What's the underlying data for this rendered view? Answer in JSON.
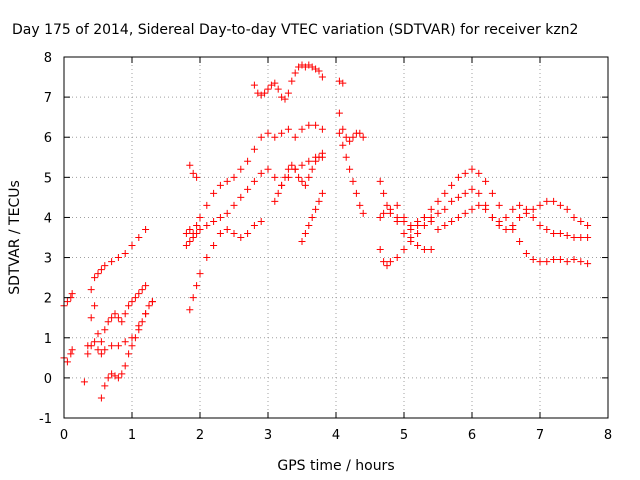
{
  "chart_data": {
    "type": "scatter",
    "title": "Day 175 of 2014, Sidereal Day-to-day VTEC variation (SDTVAR) for receiver kzn2",
    "xlabel": "GPS time / hours",
    "ylabel": "SDTVAR / TECUs",
    "xlim": [
      0,
      8
    ],
    "ylim": [
      -1,
      8
    ],
    "x_ticks": [
      0,
      1,
      2,
      3,
      4,
      5,
      6,
      7,
      8
    ],
    "y_ticks": [
      -1,
      0,
      1,
      2,
      3,
      4,
      5,
      6,
      7,
      8
    ],
    "grid": true,
    "marker": "+",
    "color": "#ff0000",
    "series": [
      {
        "x": [
          0.0,
          0.05,
          0.1,
          0.12
        ],
        "y": [
          1.8,
          1.9,
          2.0,
          2.1
        ]
      },
      {
        "x": [
          0.0,
          0.05,
          0.1,
          0.12
        ],
        "y": [
          0.5,
          0.4,
          0.6,
          0.7
        ]
      },
      {
        "x": [
          0.4,
          0.45,
          0.5,
          0.55,
          0.6,
          0.7,
          0.8,
          0.9,
          1.0,
          1.1,
          1.2
        ],
        "y": [
          2.2,
          2.5,
          2.6,
          2.7,
          2.8,
          2.9,
          3.0,
          3.1,
          3.3,
          3.5,
          3.7
        ]
      },
      {
        "x": [
          0.35,
          0.4,
          0.45,
          0.5,
          0.55,
          0.6,
          0.65,
          0.7,
          0.75,
          0.8,
          0.85,
          0.9,
          0.95,
          1.0,
          1.05,
          1.1,
          1.15,
          1.2
        ],
        "y": [
          0.8,
          1.5,
          1.8,
          1.1,
          0.9,
          1.2,
          1.4,
          1.5,
          1.6,
          1.5,
          1.4,
          1.6,
          1.8,
          1.9,
          2.0,
          2.1,
          2.2,
          2.3
        ]
      },
      {
        "x": [
          0.3,
          0.35,
          0.4,
          0.45,
          0.5,
          0.55,
          0.6,
          0.7,
          0.8,
          0.9,
          1.0,
          1.1,
          1.2,
          1.3
        ],
        "y": [
          -0.1,
          0.6,
          0.8,
          0.9,
          0.7,
          0.6,
          0.7,
          0.8,
          0.8,
          0.9,
          1.0,
          1.3,
          1.6,
          1.9
        ]
      },
      {
        "x": [
          0.55,
          0.6,
          0.65,
          0.7,
          0.75,
          0.8,
          0.85,
          0.9,
          0.95,
          1.0,
          1.05,
          1.1,
          1.15,
          1.2,
          1.25,
          1.3
        ],
        "y": [
          -0.5,
          -0.2,
          0.0,
          0.1,
          0.05,
          0.0,
          0.1,
          0.3,
          0.6,
          0.8,
          1.0,
          1.2,
          1.4,
          1.6,
          1.8,
          1.9
        ]
      },
      {
        "x": [
          1.8,
          1.85,
          1.9,
          1.95,
          2.0,
          2.1,
          2.2,
          2.3,
          2.4,
          2.5,
          2.6,
          2.7,
          2.8,
          2.9,
          3.0,
          3.1,
          3.2,
          3.3,
          3.4,
          3.5,
          3.6,
          3.7,
          3.8
        ],
        "y": [
          3.6,
          3.7,
          3.6,
          3.8,
          4.0,
          4.3,
          4.6,
          4.8,
          4.9,
          5.0,
          5.2,
          5.4,
          5.7,
          6.0,
          6.1,
          6.0,
          6.1,
          6.2,
          6.0,
          6.2,
          6.3,
          6.3,
          6.2
        ]
      },
      {
        "x": [
          1.8,
          1.85,
          1.9,
          1.95,
          2.0,
          2.1,
          2.2,
          2.3,
          2.4,
          2.5,
          2.6,
          2.7,
          2.8,
          2.9,
          3.0,
          3.1,
          3.2,
          3.3,
          3.4,
          3.5,
          3.6,
          3.7,
          3.8
        ],
        "y": [
          3.3,
          3.4,
          3.5,
          3.6,
          3.7,
          3.8,
          3.9,
          4.0,
          4.1,
          4.3,
          4.5,
          4.7,
          4.9,
          5.1,
          5.2,
          5.0,
          4.8,
          5.0,
          5.2,
          5.3,
          5.4,
          5.5,
          5.6
        ]
      },
      {
        "x": [
          1.85,
          1.9,
          1.95,
          2.0,
          2.1,
          2.2,
          2.3,
          2.4,
          2.5,
          2.6,
          2.7,
          2.8,
          2.9
        ],
        "y": [
          1.7,
          2.0,
          2.3,
          2.6,
          3.0,
          3.3,
          3.6,
          3.7,
          3.6,
          3.5,
          3.6,
          3.8,
          3.9
        ]
      },
      {
        "x": [
          1.85,
          1.9,
          1.95
        ],
        "y": [
          5.3,
          5.1,
          5.0
        ]
      },
      {
        "x": [
          2.8,
          2.85,
          2.9,
          2.95,
          3.0,
          3.05,
          3.1,
          3.15,
          3.2,
          3.25,
          3.3,
          3.35,
          3.4,
          3.45,
          3.5,
          3.55,
          3.6,
          3.65,
          3.7,
          3.75,
          3.8
        ],
        "y": [
          7.3,
          7.1,
          7.05,
          7.1,
          7.2,
          7.3,
          7.35,
          7.2,
          7.0,
          6.95,
          7.1,
          7.4,
          7.6,
          7.75,
          7.8,
          7.75,
          7.8,
          7.75,
          7.7,
          7.65,
          7.5
        ]
      },
      {
        "x": [
          3.1,
          3.15,
          3.2,
          3.25,
          3.3,
          3.35,
          3.4,
          3.45,
          3.5,
          3.55,
          3.6,
          3.65,
          3.7,
          3.75,
          3.8
        ],
        "y": [
          4.4,
          4.6,
          4.8,
          5.0,
          5.2,
          5.3,
          5.2,
          5.0,
          4.9,
          4.8,
          5.0,
          5.2,
          5.4,
          5.5,
          5.5
        ]
      },
      {
        "x": [
          3.5,
          3.55,
          3.6,
          3.65,
          3.7,
          3.75,
          3.8
        ],
        "y": [
          3.4,
          3.6,
          3.8,
          4.0,
          4.2,
          4.4,
          4.6
        ]
      },
      {
        "x": [
          4.05,
          4.1,
          4.15,
          4.2,
          4.25,
          4.3,
          4.35,
          4.4
        ],
        "y": [
          6.1,
          5.8,
          5.5,
          5.2,
          4.9,
          4.6,
          4.3,
          4.1
        ]
      },
      {
        "x": [
          4.05,
          4.1,
          4.15,
          4.2,
          4.25,
          4.3,
          4.35,
          4.4
        ],
        "y": [
          6.6,
          6.2,
          6.0,
          5.9,
          6.0,
          6.1,
          6.1,
          6.0
        ]
      },
      {
        "x": [
          4.05,
          4.1
        ],
        "y": [
          7.4,
          7.35
        ]
      },
      {
        "x": [
          4.65,
          4.7,
          4.75,
          4.8,
          4.9,
          5.0,
          5.1,
          5.2,
          5.3,
          5.4,
          5.5,
          5.6,
          5.7,
          5.8,
          5.9,
          6.0,
          6.1,
          6.2,
          6.3,
          6.4,
          6.5,
          6.6,
          6.7,
          6.8,
          6.9,
          7.0,
          7.1,
          7.2,
          7.3,
          7.4,
          7.5,
          7.6,
          7.7
        ],
        "y": [
          4.9,
          4.6,
          4.3,
          4.1,
          4.0,
          3.9,
          3.8,
          3.9,
          4.0,
          4.2,
          4.4,
          4.6,
          4.8,
          5.0,
          5.1,
          5.2,
          5.1,
          4.9,
          4.6,
          4.3,
          4.0,
          3.7,
          3.4,
          3.1,
          2.95,
          2.9,
          2.9,
          2.95,
          2.95,
          2.9,
          2.95,
          2.9,
          2.85
        ]
      },
      {
        "x": [
          4.65,
          4.7,
          4.8,
          4.9,
          5.0,
          5.1,
          5.2,
          5.3,
          5.4,
          5.5,
          5.6,
          5.7,
          5.8,
          5.9,
          6.0,
          6.1,
          6.2,
          6.3,
          6.4,
          6.5,
          6.6,
          6.7,
          6.8,
          6.9,
          7.0,
          7.1,
          7.2,
          7.3,
          7.4,
          7.5,
          7.6,
          7.7
        ],
        "y": [
          4.0,
          4.1,
          4.2,
          4.3,
          4.0,
          3.7,
          3.6,
          3.8,
          4.0,
          4.1,
          4.2,
          4.4,
          4.5,
          4.6,
          4.7,
          4.6,
          4.3,
          4.0,
          3.9,
          4.0,
          4.2,
          4.3,
          4.2,
          4.0,
          3.8,
          3.7,
          3.6,
          3.6,
          3.55,
          3.5,
          3.5,
          3.5
        ]
      },
      {
        "x": [
          4.65,
          4.7,
          4.75,
          4.8,
          4.9,
          5.0,
          5.1,
          5.2,
          5.3,
          5.4,
          5.5,
          5.6,
          5.7,
          5.8,
          5.9,
          6.0,
          6.1,
          6.2,
          6.3,
          6.4,
          6.5,
          6.6,
          6.7,
          6.8,
          6.9,
          7.0,
          7.1,
          7.2,
          7.3,
          7.4,
          7.5,
          7.6,
          7.7
        ],
        "y": [
          3.2,
          2.9,
          2.8,
          2.9,
          3.0,
          3.2,
          3.5,
          3.8,
          4.0,
          3.9,
          3.7,
          3.8,
          3.9,
          4.0,
          4.1,
          4.2,
          4.3,
          4.2,
          4.0,
          3.8,
          3.7,
          3.8,
          4.0,
          4.1,
          4.2,
          4.3,
          4.4,
          4.4,
          4.3,
          4.2,
          4.0,
          3.9,
          3.8
        ]
      },
      {
        "x": [
          4.9,
          5.0,
          5.1,
          5.2,
          5.3,
          5.4
        ],
        "y": [
          3.9,
          3.6,
          3.4,
          3.3,
          3.2,
          3.2
        ]
      }
    ]
  }
}
